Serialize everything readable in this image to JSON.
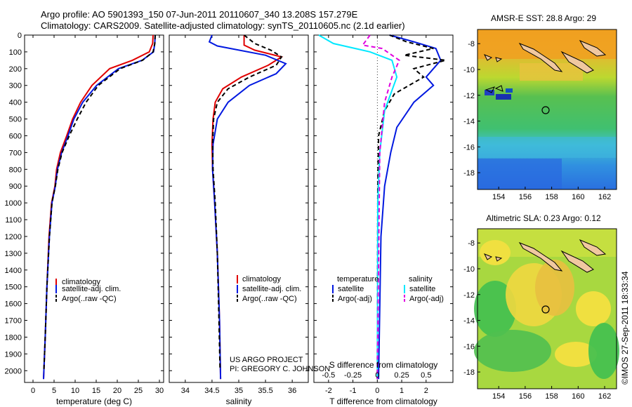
{
  "header": {
    "line1": "Argo profile: AO 5901393_150 07-Jun-2011 20110607_340 13.208S 157.279E",
    "line2": "Climatology: CARS2009. Satellite-adjusted climatology: synTS_20110605.nc (2.1d earlier)"
  },
  "colors": {
    "climatology": "#e00000",
    "satellite": "#0018e0",
    "argo": "#000000",
    "salinity_satellite": "#00e8ff",
    "salinity_argo": "#e000e0"
  },
  "credit": {
    "project": "US ARGO PROJECT",
    "pi": "PI: GREGORY C. JOHNSON",
    "stamp": "©IMOS 27-Sep-2011 18:33:34"
  },
  "chart_data": [
    {
      "type": "line",
      "panel": "temperature",
      "xlabel": "temperature (deg C)",
      "xlim": [
        -2,
        31
      ],
      "xticks": [
        0,
        5,
        10,
        15,
        20,
        25,
        30
      ],
      "ylim": [
        0,
        2070
      ],
      "yticks": [
        0,
        100,
        200,
        300,
        400,
        500,
        600,
        700,
        800,
        900,
        1000,
        1100,
        1200,
        1300,
        1400,
        1500,
        1600,
        1700,
        1800,
        1900,
        2000
      ],
      "legend": [
        "climatology",
        "satellite-adj. clim.",
        "Argo(..raw -QC)"
      ],
      "series": [
        {
          "name": "climatology",
          "color_key": "climatology",
          "style": "solid",
          "x": [
            28.5,
            28.4,
            27.6,
            23.6,
            18.2,
            14.0,
            11.3,
            9.4,
            8.0,
            6.5,
            5.6,
            5.2,
            4.4,
            3.8,
            3.3,
            2.9,
            2.5
          ],
          "y": [
            0,
            50,
            100,
            150,
            200,
            300,
            400,
            500,
            600,
            700,
            800,
            900,
            1000,
            1200,
            1500,
            1800,
            2050
          ]
        },
        {
          "name": "satellite-adj. clim.",
          "color_key": "satellite",
          "style": "solid",
          "x": [
            29.0,
            28.9,
            28.6,
            25.9,
            20.3,
            15.1,
            11.8,
            9.7,
            8.3,
            6.8,
            5.8,
            5.3,
            4.5,
            3.9,
            3.3,
            2.9,
            2.5
          ],
          "y": [
            0,
            50,
            100,
            150,
            200,
            300,
            400,
            500,
            600,
            700,
            800,
            900,
            1000,
            1200,
            1500,
            1800,
            2050
          ]
        },
        {
          "name": "Argo(..raw -QC)",
          "color_key": "argo",
          "style": "dashed",
          "x": [
            29.0,
            28.9,
            28.5,
            26.0,
            20.7,
            15.5,
            12.6,
            10.5,
            8.6,
            6.9,
            5.9,
            5.3,
            4.5,
            3.9,
            3.3,
            2.9,
            2.6
          ],
          "y": [
            0,
            50,
            100,
            150,
            200,
            300,
            400,
            500,
            600,
            700,
            800,
            900,
            1000,
            1200,
            1500,
            1800,
            1990
          ]
        }
      ]
    },
    {
      "type": "line",
      "panel": "salinity",
      "xlabel": "salinity",
      "xlim": [
        33.7,
        36.3
      ],
      "xticks": [
        34,
        34.5,
        35,
        35.5,
        36
      ],
      "xticklabels": [
        "34",
        "34.5",
        "35",
        "35.5",
        "36"
      ],
      "ylim": [
        0,
        2070
      ],
      "legend": [
        "climatology",
        "satellite-adj. clim.",
        "Argo(..raw -QC)"
      ],
      "series": [
        {
          "name": "climatology",
          "color_key": "climatology",
          "style": "solid",
          "x": [
            35.1,
            35.1,
            35.3,
            35.8,
            35.55,
            35.05,
            34.7,
            34.56,
            34.52,
            34.5,
            34.51,
            34.55,
            34.6,
            34.64,
            34.66
          ],
          "y": [
            0,
            60,
            90,
            130,
            180,
            250,
            320,
            400,
            500,
            650,
            800,
            1000,
            1300,
            1700,
            2050
          ]
        },
        {
          "name": "satellite-adj. clim.",
          "color_key": "satellite",
          "style": "solid",
          "x": [
            34.5,
            34.45,
            34.6,
            35.5,
            35.88,
            35.7,
            35.2,
            34.8,
            34.6,
            34.52,
            34.51,
            34.55,
            34.6,
            34.64,
            34.66
          ],
          "y": [
            0,
            40,
            65,
            120,
            170,
            230,
            300,
            400,
            500,
            650,
            800,
            1000,
            1300,
            1700,
            2050
          ]
        },
        {
          "name": "Argo(..raw -QC)",
          "color_key": "argo",
          "style": "dashed",
          "x": [
            35.1,
            35.3,
            35.6,
            35.8,
            35.7,
            35.2,
            34.8,
            34.6,
            34.53,
            34.51,
            34.52,
            34.56,
            34.6,
            34.63,
            34.65
          ],
          "y": [
            0,
            50,
            90,
            130,
            180,
            250,
            320,
            400,
            500,
            650,
            800,
            1000,
            1300,
            1700,
            1990
          ]
        }
      ]
    },
    {
      "type": "line",
      "panel": "difference",
      "xlabel": "T difference from climatology",
      "xlim": [
        -2.6,
        3.1
      ],
      "xticks": [
        -2,
        -1,
        0,
        1,
        2
      ],
      "xlabel_secondary": "S difference from climatology",
      "secondary_ticklabels": [
        "-0.5",
        "-0.25",
        "0",
        "0.25",
        "0.5"
      ],
      "ylim": [
        0,
        2070
      ],
      "legend_headers": [
        "temperature",
        "salinity"
      ],
      "legend": [
        "satellite",
        "Argo(-adj)",
        "satellite",
        "Argo(-adj)"
      ],
      "series": [
        {
          "name": "temperature satellite",
          "color_key": "satellite",
          "style": "solid",
          "x": [
            0.5,
            1.5,
            2.4,
            2.6,
            2.0,
            2.3,
            1.5,
            0.8,
            0.55,
            0.3,
            0.15,
            0.05
          ],
          "y": [
            0,
            40,
            80,
            150,
            250,
            300,
            400,
            550,
            700,
            900,
            1200,
            2050
          ]
        },
        {
          "name": "temperature Argo(-adj)",
          "color_key": "argo",
          "style": "dashed",
          "x": [
            0.5,
            1.2,
            2.3,
            1.1,
            2.8,
            1.5,
            1.9,
            0.7,
            0.3,
            0.05,
            0.02,
            0.0
          ],
          "y": [
            0,
            40,
            80,
            120,
            150,
            200,
            250,
            350,
            450,
            600,
            900,
            2050
          ]
        },
        {
          "name": "salinity satellite",
          "color_key": "salinity_satellite",
          "style": "solid",
          "x": [
            -2.4,
            -1.8,
            -0.3,
            0.6,
            0.8,
            0.3,
            0.1,
            0.02,
            0.0
          ],
          "y": [
            0,
            50,
            100,
            150,
            250,
            450,
            700,
            1000,
            2050
          ]
        },
        {
          "name": "salinity Argo(-adj)",
          "color_key": "salinity_argo",
          "style": "dashed",
          "x": [
            -0.3,
            -0.6,
            0.2,
            0.9,
            0.6,
            0.3,
            0.1,
            0.0
          ],
          "y": [
            0,
            60,
            80,
            150,
            250,
            400,
            700,
            2050
          ]
        }
      ]
    },
    {
      "type": "heatmap",
      "panel": "sst_map",
      "title": "AMSR-E SST: 28.8 Argo: 29",
      "xticks": [
        154,
        156,
        158,
        160,
        162
      ],
      "yticks": [
        -8,
        -10,
        -12,
        -14,
        -16,
        -18
      ],
      "xlim": [
        152.4,
        162.9
      ],
      "ylim": [
        -19.3,
        -6.9
      ],
      "marker": {
        "lon": 157.279,
        "lat": -13.208
      }
    },
    {
      "type": "heatmap",
      "panel": "sla_map",
      "title": "Altimetric SLA: 0.23 Argo: 0.12",
      "xticks": [
        154,
        156,
        158,
        160,
        162
      ],
      "yticks": [
        -8,
        -10,
        -12,
        -14,
        -16,
        -18
      ],
      "xlim": [
        152.4,
        162.9
      ],
      "ylim": [
        -19.3,
        -6.9
      ],
      "marker": {
        "lon": 157.279,
        "lat": -13.208
      }
    }
  ]
}
